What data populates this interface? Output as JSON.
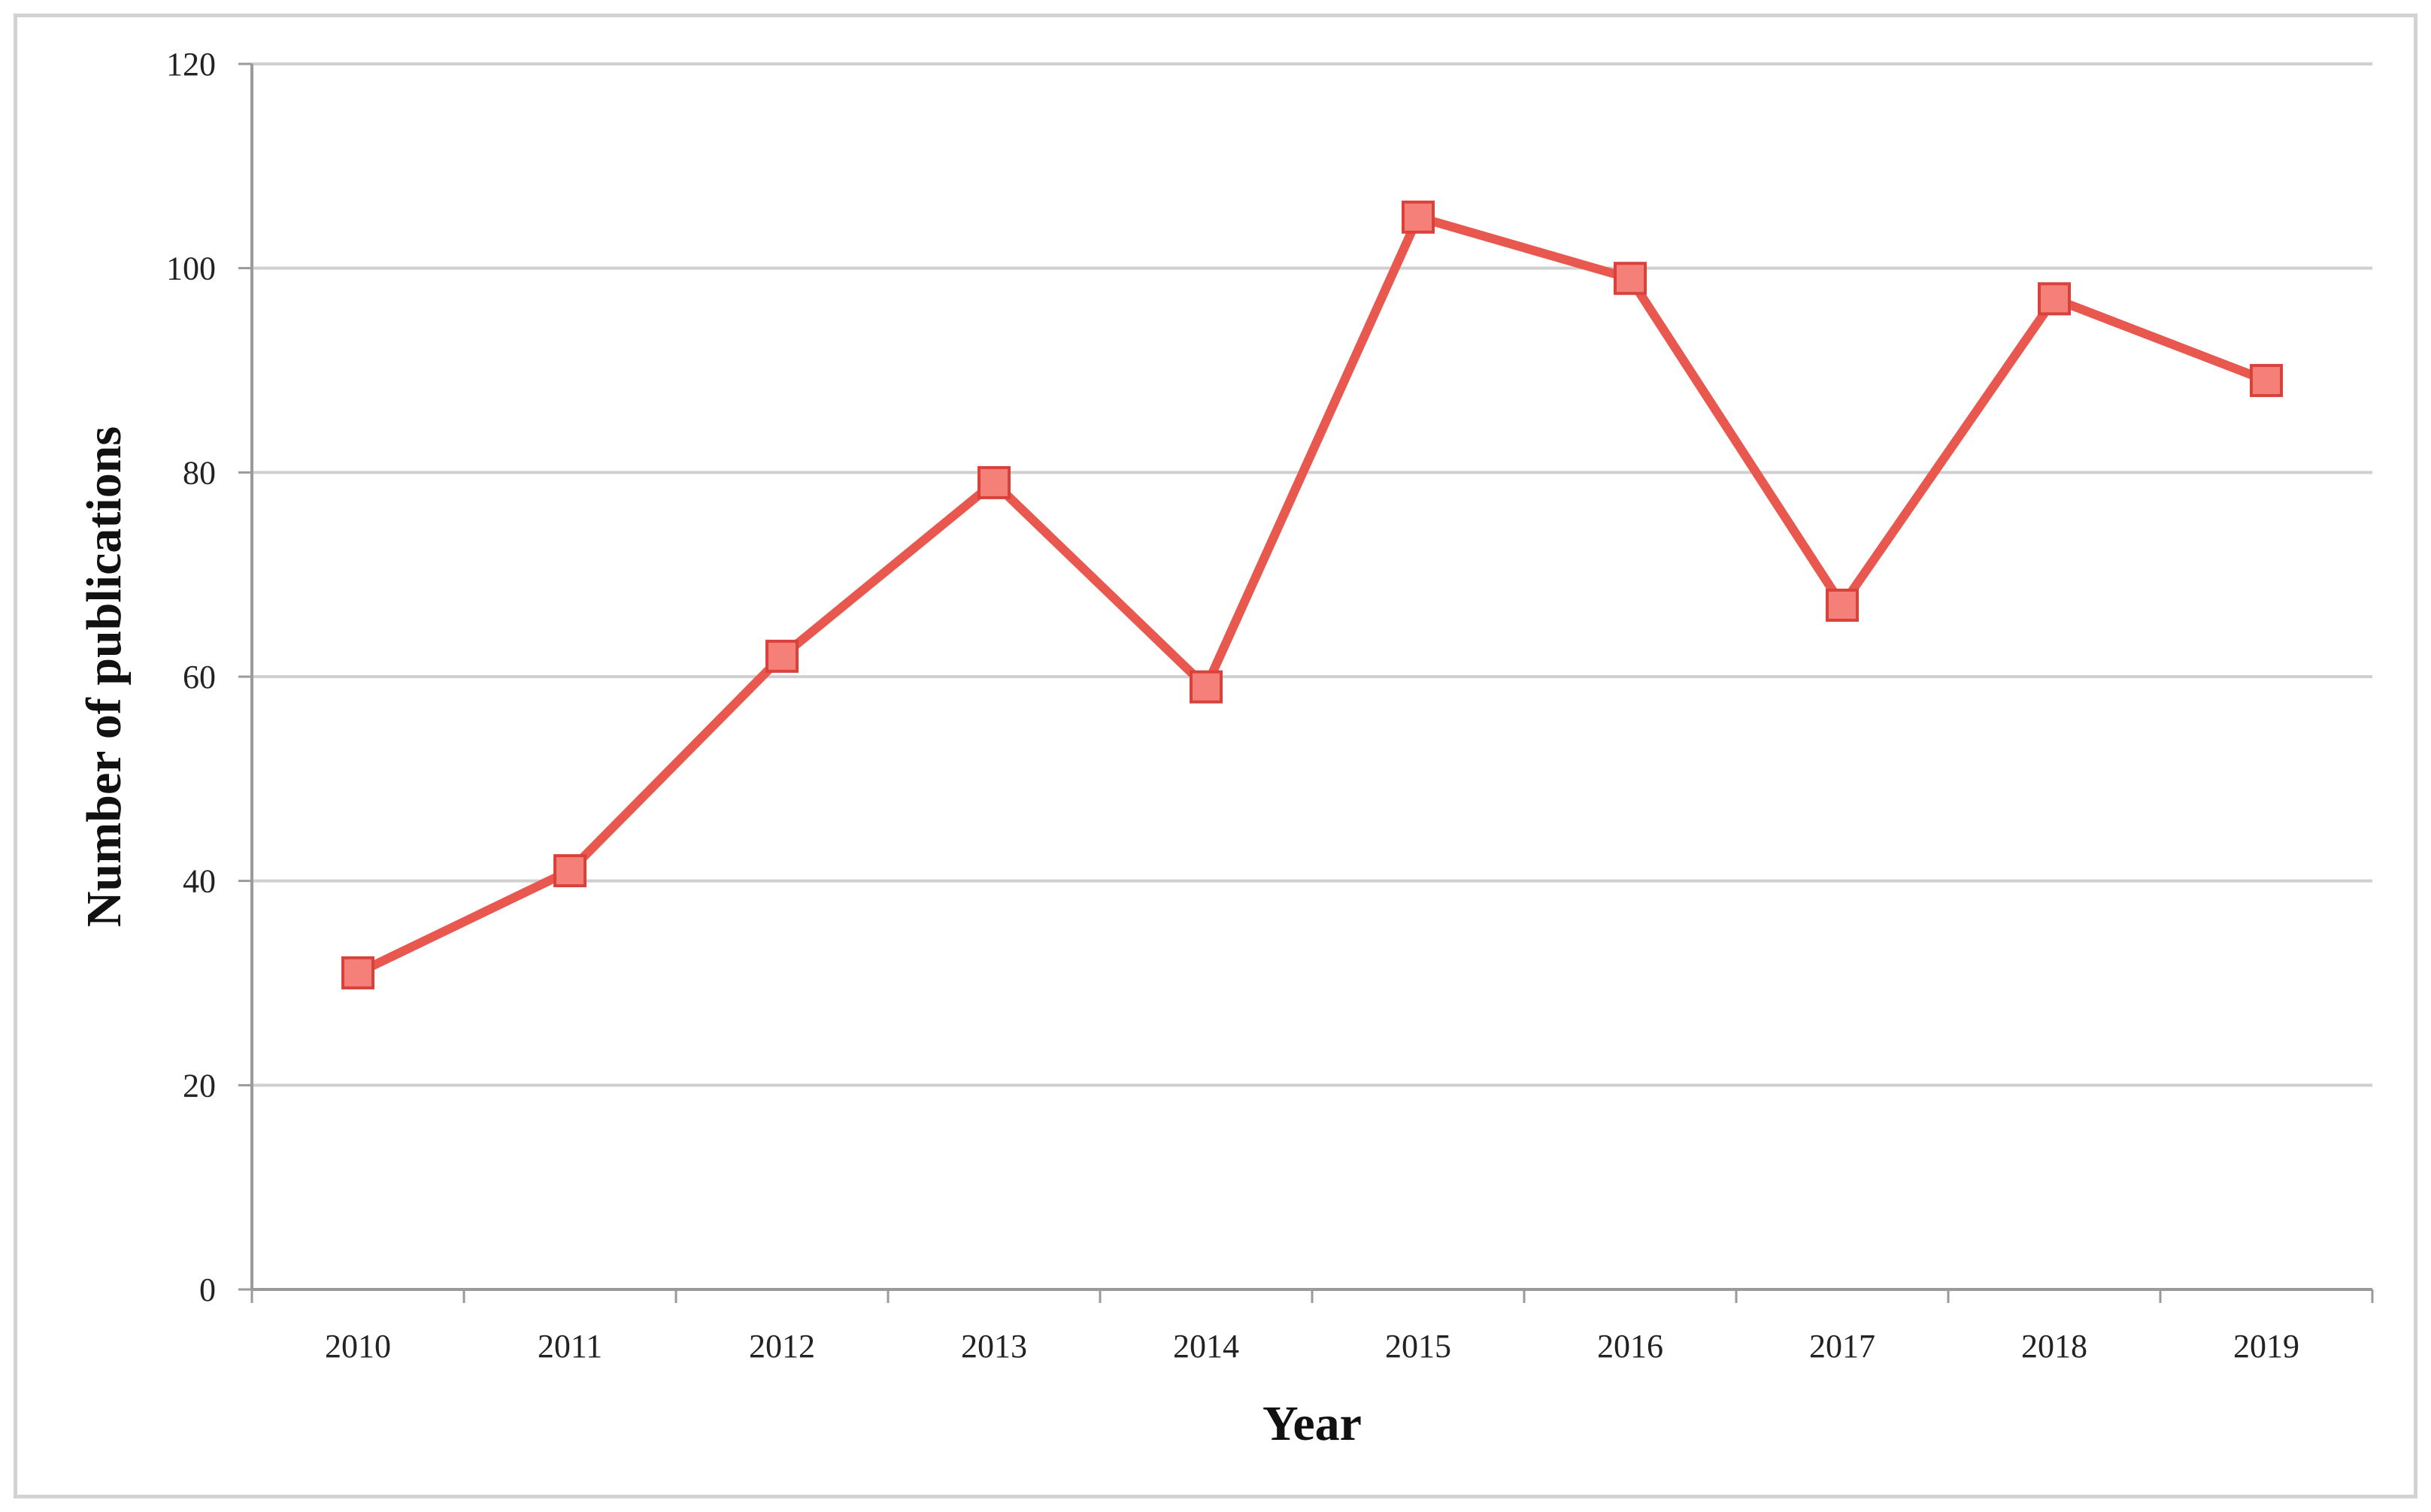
{
  "chart_data": {
    "type": "line",
    "title": "",
    "xlabel": "Year",
    "ylabel": "Number of publications",
    "categories": [
      "2010",
      "2011",
      "2012",
      "2013",
      "2014",
      "2015",
      "2016",
      "2017",
      "2018",
      "2019"
    ],
    "series": [
      {
        "values": [
          31,
          41,
          62,
          79,
          59,
          105,
          99,
          67,
          97,
          89
        ]
      }
    ],
    "ylim": [
      0,
      120
    ],
    "yticks": [
      0,
      20,
      40,
      60,
      80,
      100,
      120
    ],
    "grid": true,
    "legend": "none",
    "marker": "square",
    "colors": {
      "line": "#e8584f",
      "marker_fill": "#f57f79",
      "marker_stroke": "#d9423b",
      "grid": "#cfcfcf",
      "axis": "#9a9a9a"
    }
  }
}
